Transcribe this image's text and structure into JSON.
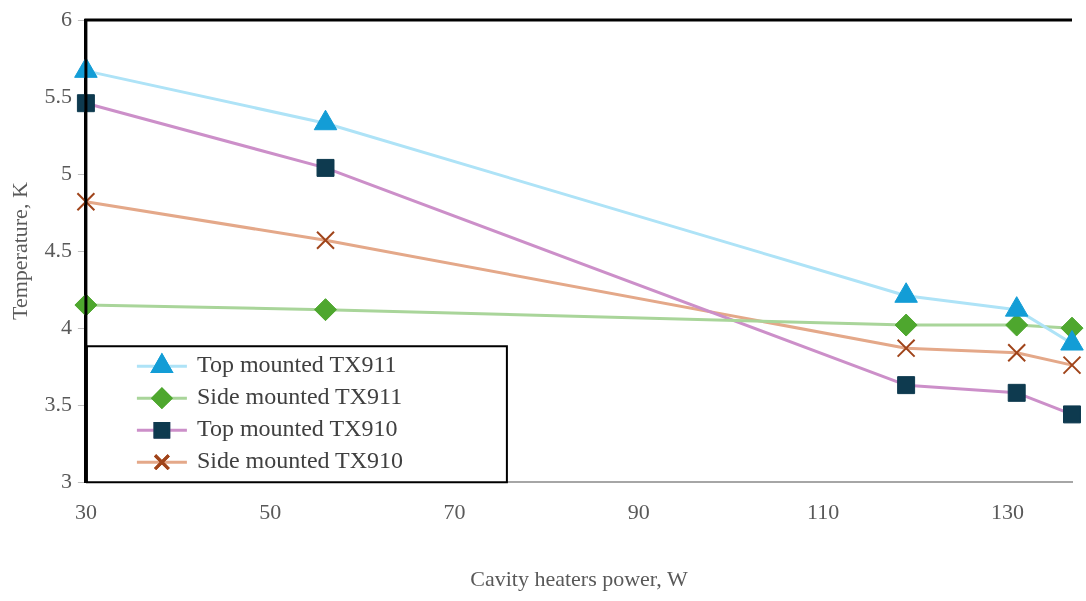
{
  "chart_data": {
    "type": "line",
    "xlabel": "Cavity heaters power, W",
    "ylabel": "Temperature, K",
    "x": [
      30,
      56,
      119,
      131,
      137
    ],
    "xlim": [
      30,
      137
    ],
    "xticks": [
      30,
      50,
      70,
      90,
      110,
      130
    ],
    "ylim": [
      3,
      6
    ],
    "yticks": [
      3,
      {
        "value": 3.5,
        "label": "3.5"
      },
      4,
      {
        "value": 4.5,
        "label": "4.5"
      },
      5,
      {
        "value": 5.5,
        "label": "5.5"
      },
      6
    ],
    "grid": false,
    "legend": "bottom left",
    "series": [
      {
        "name": "Top mounted TX911",
        "color": "#aee3f7",
        "colors": [
          "#139dd6",
          "#139dd6",
          "#139dd6",
          "#139dd6",
          "#139dd6"
        ],
        "marker": "triangle",
        "values": [
          5.67,
          5.33,
          4.21,
          4.12,
          3.9
        ]
      },
      {
        "name": "Side mounted TX911",
        "color": "#a9d59a",
        "colors": [
          "#4ea72e",
          "#4ea72e",
          "#4ea72e",
          "#4ea72e",
          "#4ea72e"
        ],
        "marker": "diamond",
        "values": [
          4.15,
          4.12,
          4.02,
          4.02,
          4.0
        ]
      },
      {
        "name": "Top mounted TX910",
        "color": "#cc8fc9",
        "colors": [
          "#0e3a4f",
          "#0e3a4f",
          "#0e3a4f",
          "#0e3a4f",
          "#0e3a4f"
        ],
        "marker": "square",
        "values": [
          5.46,
          5.04,
          3.63,
          3.58,
          3.44
        ]
      },
      {
        "name": "Side mounted TX910",
        "color": "#e4a889",
        "colors": [
          "#a0441a",
          "#a0441a",
          "#a0441a",
          "#a0441a",
          "#a0441a"
        ],
        "marker": "cross",
        "values": [
          4.82,
          4.57,
          3.87,
          3.84,
          3.76
        ]
      }
    ]
  }
}
